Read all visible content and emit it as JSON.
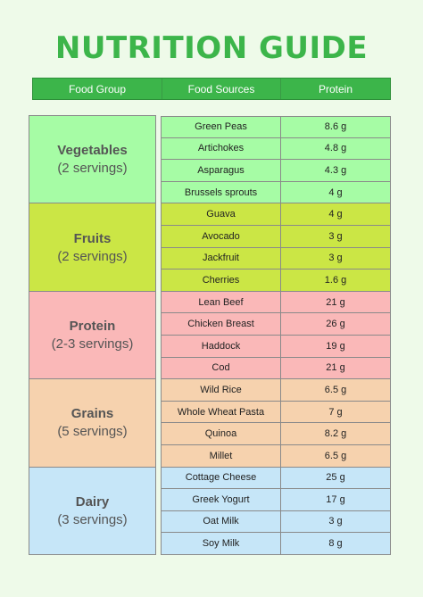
{
  "title": "NUTRITION GUIDE",
  "headers": {
    "group": "Food Group",
    "sources": "Food Sources",
    "protein": "Protein"
  },
  "colors": {
    "title": "#3cb54a",
    "header": "#3cb54a",
    "vegetables": "#a6fca5",
    "fruits": "#cbe645",
    "protein": "#fab8b8",
    "grains": "#f6d2ae",
    "dairy": "#c6e6f8"
  },
  "groups": [
    {
      "name": "Vegetables",
      "servings": "(2 servings)",
      "color": "#a6fca5",
      "items": [
        {
          "source": "Green Peas",
          "protein": "8.6 g"
        },
        {
          "source": "Artichokes",
          "protein": "4.8 g"
        },
        {
          "source": "Asparagus",
          "protein": "4.3 g"
        },
        {
          "source": "Brussels sprouts",
          "protein": "4 g"
        }
      ]
    },
    {
      "name": "Fruits",
      "servings": "(2 servings)",
      "color": "#cbe645",
      "items": [
        {
          "source": "Guava",
          "protein": "4 g"
        },
        {
          "source": "Avocado",
          "protein": "3 g"
        },
        {
          "source": "Jackfruit",
          "protein": "3 g"
        },
        {
          "source": "Cherries",
          "protein": "1.6 g"
        }
      ]
    },
    {
      "name": "Protein",
      "servings": "(2-3 servings)",
      "color": "#fab8b8",
      "items": [
        {
          "source": "Lean Beef",
          "protein": "21 g"
        },
        {
          "source": "Chicken Breast",
          "protein": "26 g"
        },
        {
          "source": "Haddock",
          "protein": "19 g"
        },
        {
          "source": "Cod",
          "protein": "21 g"
        }
      ]
    },
    {
      "name": "Grains",
      "servings": "(5 servings)",
      "color": "#f6d2ae",
      "items": [
        {
          "source": "Wild Rice",
          "protein": "6.5 g"
        },
        {
          "source": "Whole Wheat Pasta",
          "protein": "7 g"
        },
        {
          "source": "Quinoa",
          "protein": "8.2 g"
        },
        {
          "source": "Millet",
          "protein": "6.5 g"
        }
      ]
    },
    {
      "name": "Dairy",
      "servings": "(3 servings)",
      "color": "#c6e6f8",
      "items": [
        {
          "source": "Cottage Cheese",
          "protein": "25 g"
        },
        {
          "source": "Greek Yogurt",
          "protein": "17 g"
        },
        {
          "source": "Oat Milk",
          "protein": "3 g"
        },
        {
          "source": "Soy Milk",
          "protein": "8 g"
        }
      ]
    }
  ]
}
